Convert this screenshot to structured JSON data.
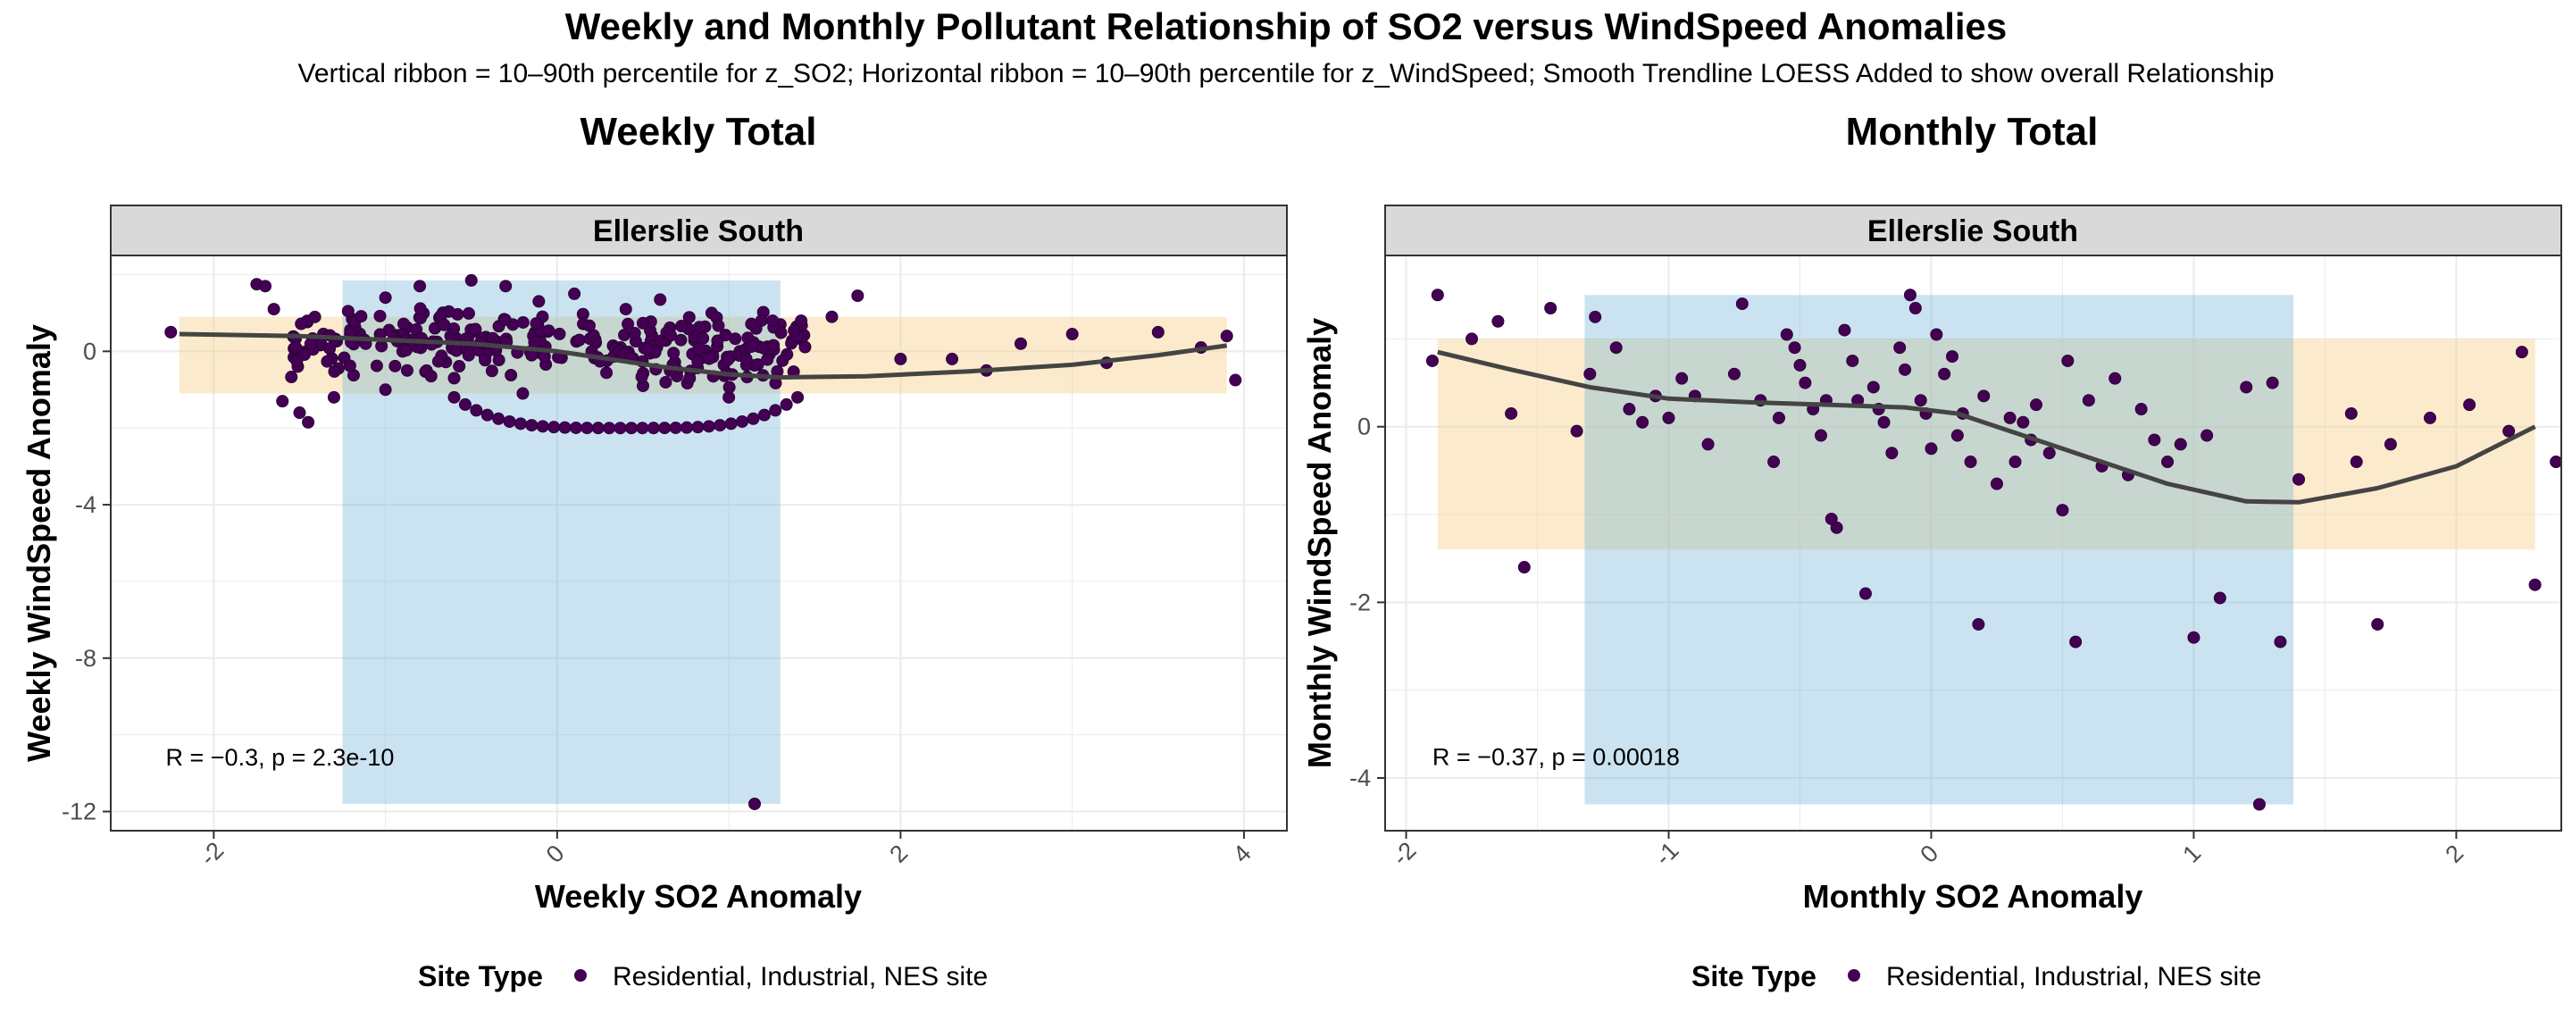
{
  "chart_data": [
    {
      "type": "scatter",
      "title": "Weekly and Monthly Pollutant Relationship of SO2 versus WindSpeed Anomalies",
      "subtitle": "Vertical ribbon = 10–90th percentile for z_SO2; Horizontal ribbon = 10–90th percentile for z_WindSpeed; Smooth Trendline LOESS Added to show overall Relationship",
      "panel_title": "Weekly Total",
      "strip": "Ellerslie South",
      "xlabel": "Weekly SO2 Anomaly",
      "ylabel": "Weekly WindSpeed Anomaly",
      "xlim": [
        -2.6,
        4.25
      ],
      "ylim": [
        -12.5,
        2.5
      ],
      "xticks": [
        -2,
        0,
        2,
        4
      ],
      "xtick_labels": [
        "-2",
        "0",
        "2",
        "4"
      ],
      "yticks": [
        -12,
        -8,
        -4,
        0
      ],
      "ytick_labels": [
        "-12",
        "-8",
        "-4",
        "0"
      ],
      "grid": true,
      "ribbon_x": [
        -1.25,
        1.3
      ],
      "ribbon_y": [
        -1.1,
        0.9
      ],
      "annotation": "R = −0.3, p = 2.3e-10",
      "annotation_pos": [
        -2.28,
        -10.8
      ],
      "series_color": "#440154",
      "smooth": [
        [
          -2.2,
          0.45
        ],
        [
          -1.5,
          0.4
        ],
        [
          -1.0,
          0.3
        ],
        [
          -0.5,
          0.2
        ],
        [
          0.0,
          0.0
        ],
        [
          0.3,
          -0.2
        ],
        [
          0.6,
          -0.4
        ],
        [
          1.0,
          -0.6
        ],
        [
          1.3,
          -0.68
        ],
        [
          1.8,
          -0.65
        ],
        [
          2.4,
          -0.52
        ],
        [
          3.0,
          -0.35
        ],
        [
          3.5,
          -0.1
        ],
        [
          3.9,
          0.15
        ]
      ],
      "points": [
        [
          -2.25,
          0.5
        ],
        [
          -1.75,
          1.75
        ],
        [
          -1.7,
          1.7
        ],
        [
          -1.65,
          1.1
        ],
        [
          -1.6,
          -1.3
        ],
        [
          -1.5,
          -1.6
        ],
        [
          -1.45,
          -1.85
        ],
        [
          -1.3,
          -1.2
        ],
        [
          1.3,
          0.7
        ],
        [
          1.6,
          0.9
        ],
        [
          1.75,
          1.45
        ],
        [
          2.0,
          -0.2
        ],
        [
          2.3,
          -0.2
        ],
        [
          2.5,
          -0.5
        ],
        [
          2.7,
          0.2
        ],
        [
          3.0,
          0.45
        ],
        [
          3.2,
          -0.3
        ],
        [
          3.5,
          0.5
        ],
        [
          3.75,
          0.1
        ],
        [
          3.9,
          0.4
        ],
        [
          3.95,
          -0.75
        ],
        [
          1.15,
          -11.8
        ],
        [
          -0.5,
          1.85
        ],
        [
          -0.3,
          1.7
        ],
        [
          -0.8,
          1.7
        ],
        [
          0.1,
          1.5
        ],
        [
          0.6,
          1.35
        ],
        [
          0.4,
          1.1
        ],
        [
          -1.0,
          1.4
        ],
        [
          0.9,
          1.0
        ],
        [
          -0.2,
          -1.1
        ],
        [
          0.5,
          -0.9
        ],
        [
          -0.6,
          -0.7
        ],
        [
          0.7,
          -0.5
        ],
        [
          -1.0,
          -1.0
        ],
        [
          1.0,
          -1.2
        ]
      ],
      "dense_cloud": {
        "x_range": [
          -1.55,
          1.45
        ],
        "y_center": 0.3,
        "y_spread": 0.75,
        "count": 300
      },
      "lower_arc": {
        "x_range": [
          -0.6,
          1.4
        ],
        "y": -2.0,
        "count": 32
      }
    },
    {
      "type": "scatter",
      "panel_title": "Monthly Total",
      "strip": "Ellerslie South",
      "xlabel": "Monthly SO2 Anomaly",
      "ylabel": "Monthly WindSpeed Anomaly",
      "xlim": [
        -2.08,
        2.4
      ],
      "ylim": [
        -4.6,
        1.95
      ],
      "xticks": [
        -2,
        -1,
        0,
        1,
        2
      ],
      "xtick_labels": [
        "-2",
        "-1",
        "0",
        "1",
        "2"
      ],
      "yticks": [
        -4,
        -2,
        0
      ],
      "ytick_labels": [
        "-4",
        "-2",
        "0"
      ],
      "grid": true,
      "ribbon_x": [
        -1.32,
        1.38
      ],
      "ribbon_y": [
        -1.4,
        1.0
      ],
      "annotation": "R = −0.37, p = 0.00018",
      "annotation_pos": [
        -1.9,
        -3.85
      ],
      "series_color": "#440154",
      "smooth": [
        [
          -1.88,
          0.85
        ],
        [
          -1.6,
          0.65
        ],
        [
          -1.3,
          0.45
        ],
        [
          -1.0,
          0.32
        ],
        [
          -0.7,
          0.28
        ],
        [
          -0.4,
          0.25
        ],
        [
          -0.1,
          0.22
        ],
        [
          0.1,
          0.15
        ],
        [
          0.3,
          -0.05
        ],
        [
          0.6,
          -0.35
        ],
        [
          0.9,
          -0.65
        ],
        [
          1.2,
          -0.85
        ],
        [
          1.4,
          -0.86
        ],
        [
          1.7,
          -0.7
        ],
        [
          2.0,
          -0.45
        ],
        [
          2.3,
          0.0
        ]
      ],
      "points": [
        [
          -1.88,
          1.5
        ],
        [
          -1.9,
          0.75
        ],
        [
          -1.75,
          1.0
        ],
        [
          -1.65,
          1.2
        ],
        [
          -1.6,
          0.15
        ],
        [
          -1.55,
          -1.6
        ],
        [
          -1.45,
          1.35
        ],
        [
          -1.35,
          -0.05
        ],
        [
          -1.3,
          0.6
        ],
        [
          -1.28,
          1.25
        ],
        [
          -1.2,
          0.9
        ],
        [
          -1.15,
          0.2
        ],
        [
          -1.1,
          0.05
        ],
        [
          -1.05,
          0.35
        ],
        [
          -1.0,
          0.1
        ],
        [
          -0.95,
          0.55
        ],
        [
          -0.9,
          0.35
        ],
        [
          -0.85,
          -0.2
        ],
        [
          -0.75,
          0.6
        ],
        [
          -0.72,
          1.4
        ],
        [
          -0.65,
          0.3
        ],
        [
          -0.6,
          -0.4
        ],
        [
          -0.58,
          0.1
        ],
        [
          -0.55,
          1.05
        ],
        [
          -0.52,
          0.9
        ],
        [
          -0.5,
          0.7
        ],
        [
          -0.48,
          0.5
        ],
        [
          -0.45,
          0.2
        ],
        [
          -0.42,
          -0.1
        ],
        [
          -0.4,
          0.3
        ],
        [
          -0.38,
          -1.05
        ],
        [
          -0.36,
          -1.15
        ],
        [
          -0.33,
          1.1
        ],
        [
          -0.3,
          0.75
        ],
        [
          -0.28,
          0.3
        ],
        [
          -0.25,
          -1.9
        ],
        [
          -0.22,
          0.45
        ],
        [
          -0.2,
          0.2
        ],
        [
          -0.18,
          0.05
        ],
        [
          -0.15,
          -0.3
        ],
        [
          -0.12,
          0.9
        ],
        [
          -0.1,
          0.65
        ],
        [
          -0.08,
          1.5
        ],
        [
          -0.06,
          1.35
        ],
        [
          -0.04,
          0.3
        ],
        [
          -0.02,
          0.15
        ],
        [
          0.0,
          -0.25
        ],
        [
          0.02,
          1.05
        ],
        [
          0.05,
          0.6
        ],
        [
          0.08,
          0.8
        ],
        [
          0.1,
          -0.1
        ],
        [
          0.12,
          0.15
        ],
        [
          0.15,
          -0.4
        ],
        [
          0.18,
          -2.25
        ],
        [
          0.2,
          0.35
        ],
        [
          0.25,
          -0.65
        ],
        [
          0.3,
          0.1
        ],
        [
          0.32,
          -0.4
        ],
        [
          0.35,
          0.05
        ],
        [
          0.38,
          -0.15
        ],
        [
          0.4,
          0.25
        ],
        [
          0.45,
          -0.3
        ],
        [
          0.5,
          -0.95
        ],
        [
          0.52,
          0.75
        ],
        [
          0.55,
          -2.45
        ],
        [
          0.6,
          0.3
        ],
        [
          0.65,
          -0.45
        ],
        [
          0.7,
          0.55
        ],
        [
          0.75,
          -0.55
        ],
        [
          0.8,
          0.2
        ],
        [
          0.85,
          -0.15
        ],
        [
          0.9,
          -0.4
        ],
        [
          0.95,
          -0.2
        ],
        [
          1.0,
          -2.4
        ],
        [
          1.05,
          -0.1
        ],
        [
          1.1,
          -1.95
        ],
        [
          1.2,
          0.45
        ],
        [
          1.25,
          -4.3
        ],
        [
          1.3,
          0.5
        ],
        [
          1.33,
          -2.45
        ],
        [
          1.4,
          -0.6
        ],
        [
          1.6,
          0.15
        ],
        [
          1.62,
          -0.4
        ],
        [
          1.7,
          -2.25
        ],
        [
          1.75,
          -0.2
        ],
        [
          1.9,
          0.1
        ],
        [
          2.05,
          0.25
        ],
        [
          2.2,
          -0.05
        ],
        [
          2.25,
          0.85
        ],
        [
          2.3,
          -1.8
        ],
        [
          2.38,
          -0.4
        ]
      ]
    }
  ],
  "legend": {
    "title": "Site Type",
    "label": "Residential, Industrial, NES site"
  }
}
